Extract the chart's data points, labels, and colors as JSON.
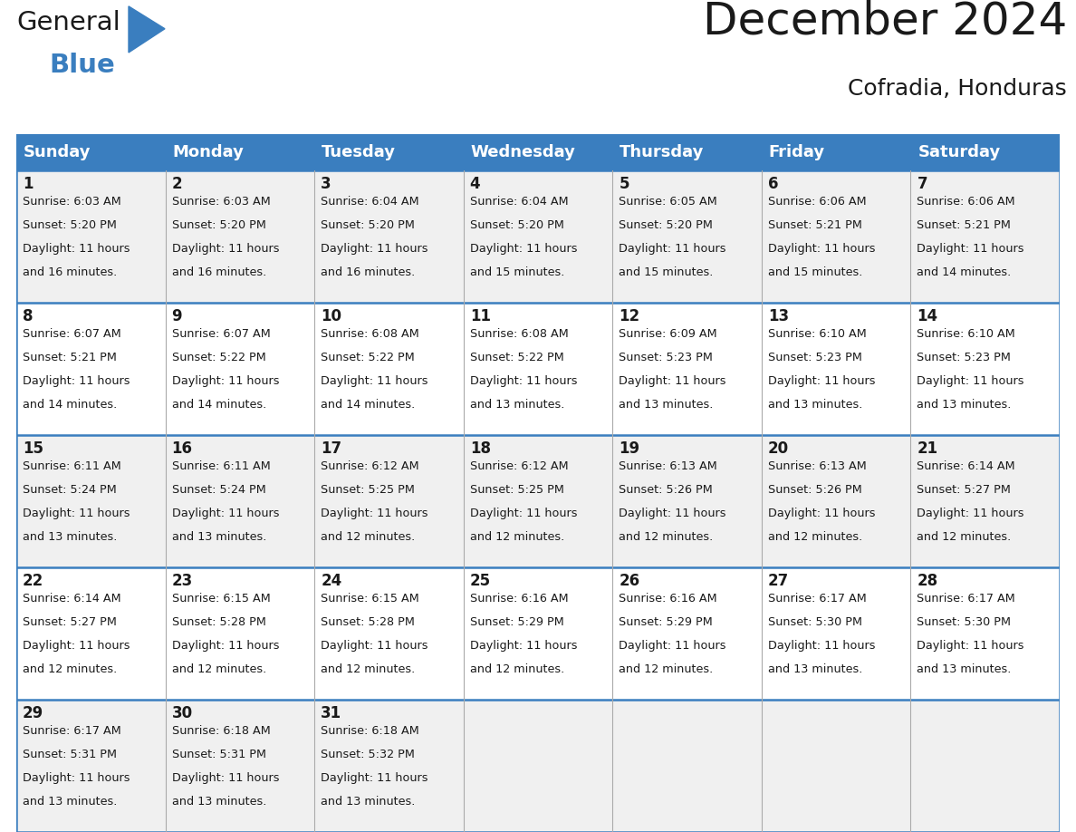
{
  "title": "December 2024",
  "subtitle": "Cofradia, Honduras",
  "header_color": "#3a7ebf",
  "header_text_color": "#ffffff",
  "day_names": [
    "Sunday",
    "Monday",
    "Tuesday",
    "Wednesday",
    "Thursday",
    "Friday",
    "Saturday"
  ],
  "bg_color": "#ffffff",
  "cell_bg_even": "#f0f0f0",
  "cell_bg_odd": "#ffffff",
  "border_color": "#3a7ebf",
  "divider_color": "#aaaaaa",
  "title_fontsize": 36,
  "subtitle_fontsize": 18,
  "day_header_fontsize": 13,
  "date_fontsize": 12,
  "cell_fontsize": 9.2,
  "weeks": [
    [
      {
        "day": 1,
        "sunrise": "6:03 AM",
        "sunset": "5:20 PM",
        "daylight": "11 hours",
        "daylight2": "and 16 minutes."
      },
      {
        "day": 2,
        "sunrise": "6:03 AM",
        "sunset": "5:20 PM",
        "daylight": "11 hours",
        "daylight2": "and 16 minutes."
      },
      {
        "day": 3,
        "sunrise": "6:04 AM",
        "sunset": "5:20 PM",
        "daylight": "11 hours",
        "daylight2": "and 16 minutes."
      },
      {
        "day": 4,
        "sunrise": "6:04 AM",
        "sunset": "5:20 PM",
        "daylight": "11 hours",
        "daylight2": "and 15 minutes."
      },
      {
        "day": 5,
        "sunrise": "6:05 AM",
        "sunset": "5:20 PM",
        "daylight": "11 hours",
        "daylight2": "and 15 minutes."
      },
      {
        "day": 6,
        "sunrise": "6:06 AM",
        "sunset": "5:21 PM",
        "daylight": "11 hours",
        "daylight2": "and 15 minutes."
      },
      {
        "day": 7,
        "sunrise": "6:06 AM",
        "sunset": "5:21 PM",
        "daylight": "11 hours",
        "daylight2": "and 14 minutes."
      }
    ],
    [
      {
        "day": 8,
        "sunrise": "6:07 AM",
        "sunset": "5:21 PM",
        "daylight": "11 hours",
        "daylight2": "and 14 minutes."
      },
      {
        "day": 9,
        "sunrise": "6:07 AM",
        "sunset": "5:22 PM",
        "daylight": "11 hours",
        "daylight2": "and 14 minutes."
      },
      {
        "day": 10,
        "sunrise": "6:08 AM",
        "sunset": "5:22 PM",
        "daylight": "11 hours",
        "daylight2": "and 14 minutes."
      },
      {
        "day": 11,
        "sunrise": "6:08 AM",
        "sunset": "5:22 PM",
        "daylight": "11 hours",
        "daylight2": "and 13 minutes."
      },
      {
        "day": 12,
        "sunrise": "6:09 AM",
        "sunset": "5:23 PM",
        "daylight": "11 hours",
        "daylight2": "and 13 minutes."
      },
      {
        "day": 13,
        "sunrise": "6:10 AM",
        "sunset": "5:23 PM",
        "daylight": "11 hours",
        "daylight2": "and 13 minutes."
      },
      {
        "day": 14,
        "sunrise": "6:10 AM",
        "sunset": "5:23 PM",
        "daylight": "11 hours",
        "daylight2": "and 13 minutes."
      }
    ],
    [
      {
        "day": 15,
        "sunrise": "6:11 AM",
        "sunset": "5:24 PM",
        "daylight": "11 hours",
        "daylight2": "and 13 minutes."
      },
      {
        "day": 16,
        "sunrise": "6:11 AM",
        "sunset": "5:24 PM",
        "daylight": "11 hours",
        "daylight2": "and 13 minutes."
      },
      {
        "day": 17,
        "sunrise": "6:12 AM",
        "sunset": "5:25 PM",
        "daylight": "11 hours",
        "daylight2": "and 12 minutes."
      },
      {
        "day": 18,
        "sunrise": "6:12 AM",
        "sunset": "5:25 PM",
        "daylight": "11 hours",
        "daylight2": "and 12 minutes."
      },
      {
        "day": 19,
        "sunrise": "6:13 AM",
        "sunset": "5:26 PM",
        "daylight": "11 hours",
        "daylight2": "and 12 minutes."
      },
      {
        "day": 20,
        "sunrise": "6:13 AM",
        "sunset": "5:26 PM",
        "daylight": "11 hours",
        "daylight2": "and 12 minutes."
      },
      {
        "day": 21,
        "sunrise": "6:14 AM",
        "sunset": "5:27 PM",
        "daylight": "11 hours",
        "daylight2": "and 12 minutes."
      }
    ],
    [
      {
        "day": 22,
        "sunrise": "6:14 AM",
        "sunset": "5:27 PM",
        "daylight": "11 hours",
        "daylight2": "and 12 minutes."
      },
      {
        "day": 23,
        "sunrise": "6:15 AM",
        "sunset": "5:28 PM",
        "daylight": "11 hours",
        "daylight2": "and 12 minutes."
      },
      {
        "day": 24,
        "sunrise": "6:15 AM",
        "sunset": "5:28 PM",
        "daylight": "11 hours",
        "daylight2": "and 12 minutes."
      },
      {
        "day": 25,
        "sunrise": "6:16 AM",
        "sunset": "5:29 PM",
        "daylight": "11 hours",
        "daylight2": "and 12 minutes."
      },
      {
        "day": 26,
        "sunrise": "6:16 AM",
        "sunset": "5:29 PM",
        "daylight": "11 hours",
        "daylight2": "and 12 minutes."
      },
      {
        "day": 27,
        "sunrise": "6:17 AM",
        "sunset": "5:30 PM",
        "daylight": "11 hours",
        "daylight2": "and 13 minutes."
      },
      {
        "day": 28,
        "sunrise": "6:17 AM",
        "sunset": "5:30 PM",
        "daylight": "11 hours",
        "daylight2": "and 13 minutes."
      }
    ],
    [
      {
        "day": 29,
        "sunrise": "6:17 AM",
        "sunset": "5:31 PM",
        "daylight": "11 hours",
        "daylight2": "and 13 minutes."
      },
      {
        "day": 30,
        "sunrise": "6:18 AM",
        "sunset": "5:31 PM",
        "daylight": "11 hours",
        "daylight2": "and 13 minutes."
      },
      {
        "day": 31,
        "sunrise": "6:18 AM",
        "sunset": "5:32 PM",
        "daylight": "11 hours",
        "daylight2": "and 13 minutes."
      },
      null,
      null,
      null,
      null
    ]
  ]
}
